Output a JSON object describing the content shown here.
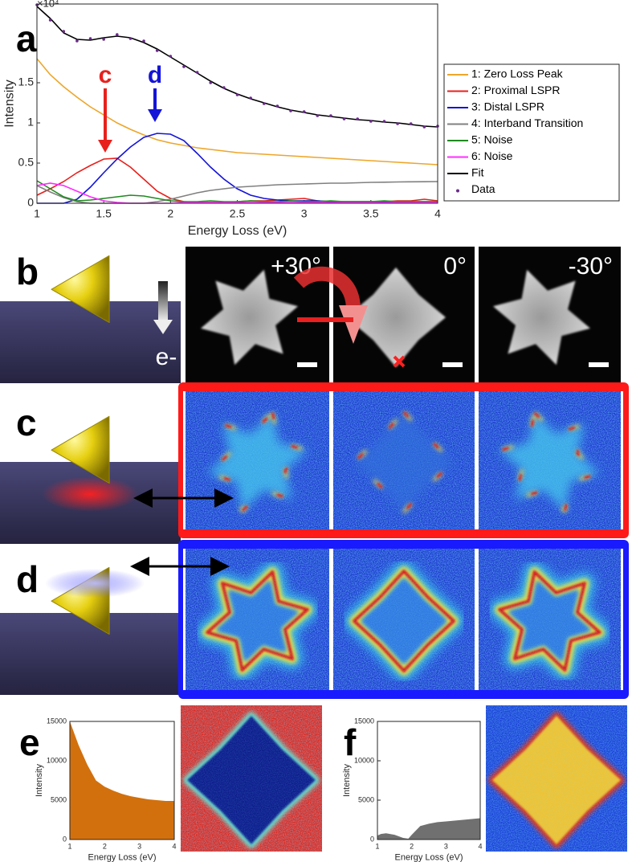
{
  "chart_data": [
    {
      "type": "line",
      "x_label": "Energy Loss (eV)",
      "y_label": "Intensity",
      "y_multiplier": "×10⁴",
      "x": [
        1,
        1.1,
        1.2,
        1.3,
        1.4,
        1.5,
        1.6,
        1.7,
        1.8,
        1.9,
        2,
        2.1,
        2.2,
        2.3,
        2.4,
        2.5,
        2.6,
        2.7,
        2.8,
        2.9,
        3,
        3.1,
        3.2,
        3.3,
        3.4,
        3.5,
        3.6,
        3.7,
        3.8,
        3.9,
        4
      ],
      "xlim": [
        1,
        4
      ],
      "xticks": [
        1,
        1.5,
        2,
        2.5,
        3,
        3.5,
        4
      ],
      "ylim": [
        0,
        2.48
      ],
      "yticks": [
        0,
        0.5,
        1,
        1.5
      ],
      "legend": "outside-right",
      "series": [
        {
          "name": "1: Zero Loss Peak",
          "color": "#eda62a",
          "style": "line",
          "values": [
            1.8,
            1.6,
            1.45,
            1.32,
            1.2,
            1.1,
            1.0,
            0.92,
            0.85,
            0.79,
            0.75,
            0.72,
            0.69,
            0.67,
            0.65,
            0.63,
            0.62,
            0.61,
            0.6,
            0.59,
            0.58,
            0.57,
            0.56,
            0.55,
            0.54,
            0.53,
            0.52,
            0.51,
            0.5,
            0.49,
            0.48
          ]
        },
        {
          "name": "2: Proximal LSPR",
          "color": "#e8201c",
          "style": "line",
          "values": [
            0.1,
            0.18,
            0.27,
            0.38,
            0.47,
            0.55,
            0.56,
            0.45,
            0.3,
            0.15,
            0.06,
            0.02,
            0.01,
            0.01,
            0.01,
            0.02,
            0.03,
            0.03,
            0.04,
            0.05,
            0.06,
            0.03,
            0.02,
            0.02,
            0.02,
            0.02,
            0.02,
            0.03,
            0.03,
            0.05,
            0.03
          ]
        },
        {
          "name": "3: Distal LSPR",
          "color": "#1414d8",
          "style": "line",
          "values": [
            0,
            0,
            0,
            0.05,
            0.2,
            0.38,
            0.55,
            0.7,
            0.82,
            0.87,
            0.86,
            0.78,
            0.62,
            0.45,
            0.3,
            0.18,
            0.1,
            0.06,
            0.04,
            0.03,
            0.03,
            0.03,
            0.02,
            0.02,
            0.02,
            0.02,
            0.02,
            0.02,
            0.02,
            0.02,
            0.02
          ]
        },
        {
          "name": "4: Interband Transition",
          "color": "#808080",
          "style": "line",
          "values": [
            0.22,
            0.14,
            0.07,
            0.02,
            0,
            0,
            0,
            0,
            0,
            0.02,
            0.05,
            0.09,
            0.13,
            0.16,
            0.18,
            0.2,
            0.21,
            0.22,
            0.23,
            0.235,
            0.24,
            0.245,
            0.25,
            0.25,
            0.255,
            0.26,
            0.262,
            0.265,
            0.267,
            0.268,
            0.27
          ]
        },
        {
          "name": "5: Noise",
          "color": "#1f8a1f",
          "style": "line",
          "values": [
            0.28,
            0.18,
            0.08,
            0.03,
            0.04,
            0.06,
            0.08,
            0.1,
            0.09,
            0.06,
            0.03,
            0.02,
            0.02,
            0.03,
            0.02,
            0.02,
            0.03,
            0.02,
            0.02,
            0.03,
            0.02,
            0.02,
            0.03,
            0.02,
            0.02,
            0.02,
            0.03,
            0.02,
            0.02,
            0.02,
            0.02
          ]
        },
        {
          "name": "6: Noise",
          "color": "#ff2cff",
          "style": "line",
          "values": [
            0.22,
            0.25,
            0.22,
            0.15,
            0.08,
            0.03,
            0.01,
            0,
            0,
            0,
            0,
            0.01,
            0.01,
            0.01,
            0.01,
            0.01,
            0.01,
            0.01,
            0.01,
            0.01,
            0.01,
            0.01,
            0.01,
            0.01,
            0.01,
            0.01,
            0.01,
            0.01,
            0.01,
            0.01,
            0.01
          ]
        },
        {
          "name": "Fit",
          "color": "#000000",
          "style": "line",
          "values": [
            2.45,
            2.3,
            2.12,
            2.04,
            2.03,
            2.06,
            2.08,
            2.06,
            2.0,
            1.92,
            1.82,
            1.72,
            1.62,
            1.52,
            1.43,
            1.36,
            1.3,
            1.25,
            1.2,
            1.16,
            1.13,
            1.1,
            1.08,
            1.06,
            1.04,
            1.03,
            1.01,
            1.0,
            0.98,
            0.96,
            0.95
          ]
        },
        {
          "name": "Data",
          "color": "#6a2a8a",
          "style": "dots",
          "values": [
            2.47,
            2.28,
            2.14,
            2.02,
            2.05,
            2.04,
            2.1,
            2.05,
            2.02,
            1.9,
            1.83,
            1.7,
            1.63,
            1.5,
            1.44,
            1.35,
            1.31,
            1.24,
            1.21,
            1.15,
            1.14,
            1.09,
            1.09,
            1.05,
            1.05,
            1.02,
            1.02,
            0.99,
            0.99,
            0.95,
            0.96
          ]
        }
      ],
      "annotations": [
        {
          "text": "c",
          "color": "#e8201c"
        },
        {
          "text": "d",
          "color": "#1414d8"
        }
      ]
    },
    {
      "type": "area",
      "x_label": "Energy Loss (eV)",
      "y_label": "Intensity",
      "x": [
        1,
        1.25,
        1.5,
        1.75,
        2,
        2.25,
        2.5,
        2.75,
        3,
        3.25,
        3.5,
        3.75,
        4
      ],
      "values": [
        15000,
        12000,
        9500,
        7500,
        6700,
        6200,
        5800,
        5500,
        5300,
        5100,
        5000,
        4900,
        4900
      ],
      "color": "#d2700e",
      "xlim": [
        1,
        4
      ],
      "xticks": [
        1,
        2,
        3,
        4
      ],
      "ylim": [
        0,
        15000
      ],
      "yticks": [
        0,
        5000,
        10000,
        15000
      ]
    },
    {
      "type": "area",
      "x_label": "Energy Loss (eV)",
      "y_label": "Intensity",
      "x": [
        1,
        1.1,
        1.25,
        1.5,
        1.75,
        1.9,
        2,
        2.25,
        2.5,
        2.75,
        3,
        3.25,
        3.5,
        3.75,
        4
      ],
      "values": [
        500,
        700,
        800,
        600,
        200,
        100,
        600,
        1700,
        2000,
        2200,
        2300,
        2400,
        2500,
        2600,
        2700
      ],
      "color": "#707070",
      "xlim": [
        1,
        4
      ],
      "xticks": [
        1,
        2,
        3,
        4
      ],
      "ylim": [
        0,
        15000
      ],
      "yticks": [
        0,
        5000,
        10000,
        15000
      ]
    }
  ],
  "figure": {
    "panel_labels": [
      "a",
      "b",
      "c",
      "d",
      "e",
      "f"
    ],
    "tilt_angles": [
      "+30°",
      "0°",
      "-30°"
    ],
    "beam_label": "e-"
  }
}
